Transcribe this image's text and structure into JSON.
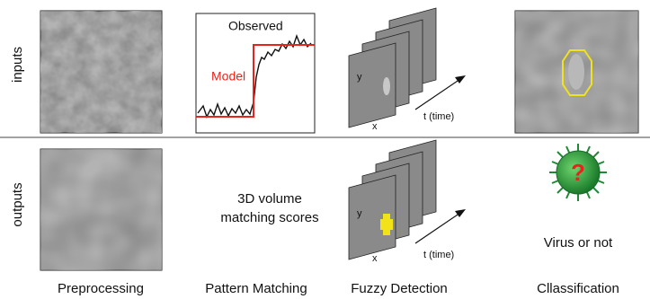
{
  "rows": [
    "inputs",
    "outputs"
  ],
  "columns": [
    "Preprocessing",
    "Pattern Matching",
    "Fuzzy Detection",
    "Cllassification"
  ],
  "pattern_plot": {
    "observed_label": "Observed",
    "model_label": "Model"
  },
  "fuzzy_input": {
    "y_label": "y",
    "x_label": "x",
    "t_label": "t (time)"
  },
  "fuzzy_output": {
    "y_label": "y",
    "x_label": "x",
    "t_label": "t (time)"
  },
  "matching_text": [
    "3D volume",
    "matching scores"
  ],
  "classification_output": "Virus or not"
}
